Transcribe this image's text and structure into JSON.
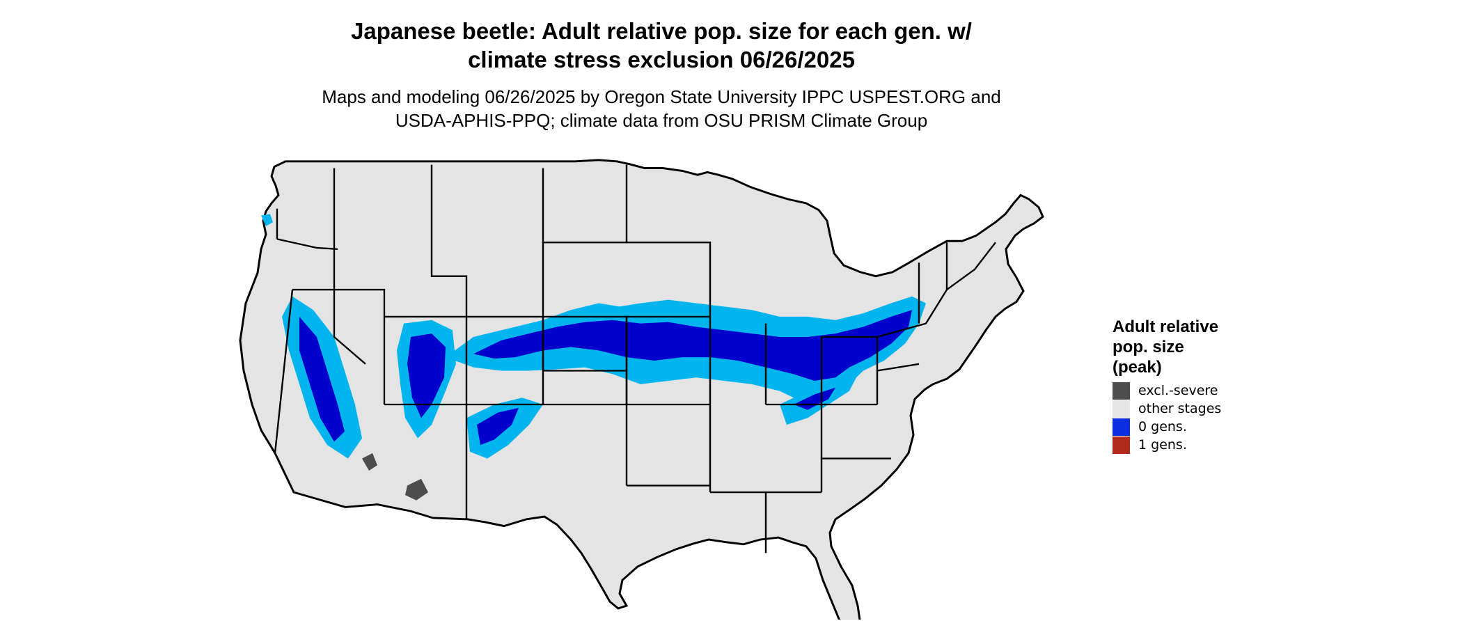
{
  "map": {
    "title_line1": "Japanese beetle: Adult relative pop. size for each gen. w/",
    "title_line2": "climate stress exclusion 06/26/2025",
    "subtitle_line1": "Maps and modeling 06/26/2025 by Oregon State University IPPC USPEST.ORG and",
    "subtitle_line2": "USDA-APHIS-PPQ; climate data from OSU PRISM Climate Group",
    "region": "Contiguous United States",
    "basemap_color": "#e4e4e4",
    "border_color": "#000000"
  },
  "legend": {
    "title_line1": "Adult relative",
    "title_line2": "pop. size",
    "title_line3": "(peak)",
    "items": [
      {
        "label": "excl.-severe",
        "color": "#4d4d4d"
      },
      {
        "label": "other stages",
        "color": "#e4e4e4"
      },
      {
        "label": "0 gens.",
        "color": "#0a2ee0"
      },
      {
        "label": "1 gens.",
        "color": "#b22a1e"
      }
    ]
  },
  "palette": {
    "light_blue": "#00b4ee",
    "dark_blue": "#0000cd",
    "dark_gray": "#4d4d4d"
  }
}
